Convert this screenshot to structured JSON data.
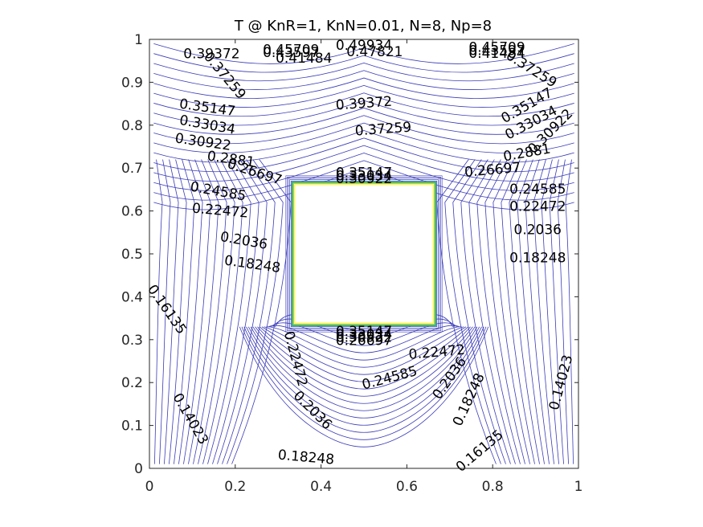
{
  "chart_data": {
    "type": "contour",
    "title": "T @ KnR=1, KnN=0.01, N=8, Np=8",
    "xlabel": "",
    "ylabel": "",
    "xlim": [
      0,
      1
    ],
    "ylim": [
      0,
      1
    ],
    "x_ticks": [
      "0",
      "0.2",
      "0.4",
      "0.6",
      "0.8",
      "1"
    ],
    "y_ticks": [
      "0",
      "0.1",
      "0.2",
      "0.3",
      "0.4",
      "0.5",
      "0.6",
      "0.7",
      "0.8",
      "0.9",
      "1"
    ],
    "grid": false,
    "colors": {
      "contour": "#3b3bb8",
      "axis": "#262626",
      "hot_edge_outer": "#2ab0a0",
      "hot_edge_mid": "#c8d400",
      "hot_edge_inner": "#fdf020"
    },
    "inner_square": {
      "x": [
        0.333,
        0.667
      ],
      "y": [
        0.333,
        0.667
      ]
    },
    "contour_levels": [
      0.14023,
      0.16135,
      0.18248,
      0.2036,
      0.22472,
      0.24585,
      0.26697,
      0.2881,
      0.30922,
      0.33034,
      0.35147,
      0.37259,
      0.39372,
      0.41484,
      0.43597,
      0.45709,
      0.47821
    ],
    "contour_labels": [
      {
        "text": "0.39372",
        "x": 0.145,
        "y": 0.965,
        "angle": 0
      },
      {
        "text": "0.37259",
        "x": 0.175,
        "y": 0.915,
        "angle": 50
      },
      {
        "text": "0.45709",
        "x": 0.33,
        "y": 0.975,
        "angle": 0
      },
      {
        "text": "0.43597",
        "x": 0.33,
        "y": 0.968,
        "angle": 0
      },
      {
        "text": "0.41484",
        "x": 0.36,
        "y": 0.955,
        "angle": 0
      },
      {
        "text": "0.49934",
        "x": 0.5,
        "y": 0.985,
        "angle": 0
      },
      {
        "text": "0.47821",
        "x": 0.525,
        "y": 0.97,
        "angle": 0
      },
      {
        "text": "0.45709",
        "x": 0.81,
        "y": 0.98,
        "angle": 0
      },
      {
        "text": "0.43597",
        "x": 0.81,
        "y": 0.973,
        "angle": 0
      },
      {
        "text": "0.41484",
        "x": 0.81,
        "y": 0.966,
        "angle": 0
      },
      {
        "text": "0.37259",
        "x": 0.89,
        "y": 0.93,
        "angle": 32
      },
      {
        "text": "0.39372",
        "x": 0.5,
        "y": 0.85,
        "angle": -4
      },
      {
        "text": "0.37259",
        "x": 0.545,
        "y": 0.79,
        "angle": -4
      },
      {
        "text": "0.35147",
        "x": 0.135,
        "y": 0.84,
        "angle": 8
      },
      {
        "text": "0.33034",
        "x": 0.135,
        "y": 0.8,
        "angle": 10
      },
      {
        "text": "0.30922",
        "x": 0.125,
        "y": 0.76,
        "angle": 8
      },
      {
        "text": "0.2881",
        "x": 0.19,
        "y": 0.72,
        "angle": 8
      },
      {
        "text": "0.26697",
        "x": 0.245,
        "y": 0.69,
        "angle": 18
      },
      {
        "text": "0.24585",
        "x": 0.16,
        "y": 0.645,
        "angle": 10
      },
      {
        "text": "0.22472",
        "x": 0.165,
        "y": 0.6,
        "angle": 5
      },
      {
        "text": "0.2036",
        "x": 0.22,
        "y": 0.53,
        "angle": 10
      },
      {
        "text": "0.18248",
        "x": 0.24,
        "y": 0.475,
        "angle": 8
      },
      {
        "text": "0.16135",
        "x": 0.04,
        "y": 0.37,
        "angle": 55
      },
      {
        "text": "0.35147",
        "x": 0.5,
        "y": 0.688,
        "angle": 0
      },
      {
        "text": "0.33034",
        "x": 0.5,
        "y": 0.681,
        "angle": 0
      },
      {
        "text": "0.30922",
        "x": 0.5,
        "y": 0.674,
        "angle": 0
      },
      {
        "text": "0.35147",
        "x": 0.88,
        "y": 0.845,
        "angle": -30
      },
      {
        "text": "0.33034",
        "x": 0.89,
        "y": 0.805,
        "angle": -28
      },
      {
        "text": "0.30922",
        "x": 0.935,
        "y": 0.785,
        "angle": -45
      },
      {
        "text": "0.2881",
        "x": 0.88,
        "y": 0.735,
        "angle": -10
      },
      {
        "text": "0.26697",
        "x": 0.8,
        "y": 0.695,
        "angle": -5
      },
      {
        "text": "0.24585",
        "x": 0.905,
        "y": 0.65,
        "angle": 0
      },
      {
        "text": "0.22472",
        "x": 0.905,
        "y": 0.61,
        "angle": 0
      },
      {
        "text": "0.2036",
        "x": 0.905,
        "y": 0.555,
        "angle": 0
      },
      {
        "text": "0.18248",
        "x": 0.905,
        "y": 0.49,
        "angle": 0
      },
      {
        "text": "0.35147",
        "x": 0.5,
        "y": 0.318,
        "angle": 0
      },
      {
        "text": "0.33034",
        "x": 0.5,
        "y": 0.311,
        "angle": 0
      },
      {
        "text": "0.30922",
        "x": 0.5,
        "y": 0.304,
        "angle": 0
      },
      {
        "text": "0.26697",
        "x": 0.5,
        "y": 0.297,
        "angle": 0
      },
      {
        "text": "0.22472",
        "x": 0.67,
        "y": 0.27,
        "angle": -5
      },
      {
        "text": "0.22472",
        "x": 0.34,
        "y": 0.255,
        "angle": 75
      },
      {
        "text": "0.24585",
        "x": 0.56,
        "y": 0.21,
        "angle": -15
      },
      {
        "text": "0.2036",
        "x": 0.7,
        "y": 0.21,
        "angle": -55
      },
      {
        "text": "0.18248",
        "x": 0.745,
        "y": 0.16,
        "angle": -65
      },
      {
        "text": "0.2036",
        "x": 0.38,
        "y": 0.135,
        "angle": 45
      },
      {
        "text": "0.14023",
        "x": 0.96,
        "y": 0.2,
        "angle": -75
      },
      {
        "text": "0.14023",
        "x": 0.095,
        "y": 0.115,
        "angle": 60
      },
      {
        "text": "0.16135",
        "x": 0.77,
        "y": 0.04,
        "angle": -40
      },
      {
        "text": "0.18248",
        "x": 0.365,
        "y": 0.025,
        "angle": 5
      }
    ]
  }
}
